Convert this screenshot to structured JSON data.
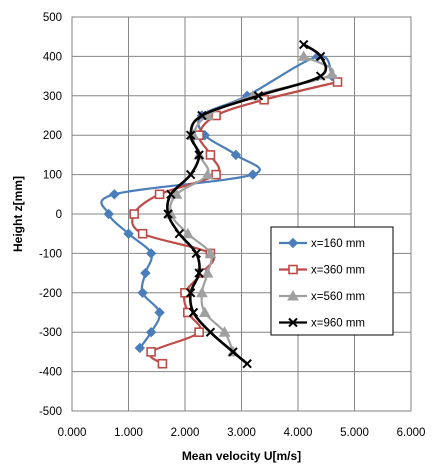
{
  "chart_data": {
    "type": "scatter",
    "xlabel": "Mean velocity U[m/s]",
    "ylabel": "Height  z[mm]",
    "xlim": [
      0,
      6
    ],
    "ylim": [
      -500,
      500
    ],
    "x_ticks": [
      "0.000",
      "1.000",
      "2.000",
      "3.000",
      "4.000",
      "5.000",
      "6.000"
    ],
    "y_ticks": [
      "-500",
      "-400",
      "-300",
      "-200",
      "-100",
      "0",
      "100",
      "200",
      "300",
      "400",
      "500"
    ],
    "grid": true,
    "legend_position": "right",
    "series": [
      {
        "name": "x=160 mm",
        "color": "#4a7ebb",
        "marker": "diamond",
        "points": [
          [
            4.6,
            350
          ],
          [
            4.35,
            400
          ],
          [
            3.1,
            300
          ],
          [
            2.3,
            250
          ],
          [
            2.35,
            200
          ],
          [
            2.9,
            150
          ],
          [
            3.2,
            100
          ],
          [
            0.75,
            50
          ],
          [
            0.65,
            0
          ],
          [
            1.0,
            -50
          ],
          [
            1.4,
            -100
          ],
          [
            1.3,
            -150
          ],
          [
            1.25,
            -200
          ],
          [
            1.55,
            -250
          ],
          [
            1.4,
            -300
          ],
          [
            1.2,
            -340
          ]
        ]
      },
      {
        "name": "x=360 mm",
        "color": "#be4b48",
        "marker": "square",
        "points": [
          [
            4.7,
            335
          ],
          [
            3.4,
            290
          ],
          [
            2.55,
            250
          ],
          [
            2.25,
            200
          ],
          [
            2.45,
            150
          ],
          [
            2.55,
            100
          ],
          [
            1.55,
            50
          ],
          [
            1.1,
            0
          ],
          [
            1.25,
            -50
          ],
          [
            2.45,
            -100
          ],
          [
            2.3,
            -150
          ],
          [
            2.0,
            -200
          ],
          [
            2.05,
            -250
          ],
          [
            2.25,
            -300
          ],
          [
            1.4,
            -350
          ],
          [
            1.6,
            -380
          ]
        ]
      },
      {
        "name": "x=560 mm",
        "color": "#a0a0a0",
        "marker": "triangle",
        "points": [
          [
            4.1,
            400
          ],
          [
            4.6,
            355
          ],
          [
            3.2,
            300
          ],
          [
            2.4,
            250
          ],
          [
            2.15,
            200
          ],
          [
            2.25,
            150
          ],
          [
            2.4,
            100
          ],
          [
            1.85,
            50
          ],
          [
            1.75,
            0
          ],
          [
            2.05,
            -50
          ],
          [
            2.45,
            -100
          ],
          [
            2.4,
            -150
          ],
          [
            2.3,
            -200
          ],
          [
            2.35,
            -250
          ],
          [
            2.7,
            -300
          ],
          [
            2.85,
            -350
          ]
        ]
      },
      {
        "name": "x=960 mm",
        "color": "#000000",
        "marker": "cross",
        "points": [
          [
            4.1,
            430
          ],
          [
            4.4,
            400
          ],
          [
            4.4,
            350
          ],
          [
            3.3,
            300
          ],
          [
            2.3,
            250
          ],
          [
            2.1,
            200
          ],
          [
            2.25,
            150
          ],
          [
            2.1,
            100
          ],
          [
            1.75,
            50
          ],
          [
            1.7,
            0
          ],
          [
            1.9,
            -50
          ],
          [
            2.2,
            -100
          ],
          [
            2.25,
            -150
          ],
          [
            2.1,
            -200
          ],
          [
            2.15,
            -250
          ],
          [
            2.45,
            -300
          ],
          [
            2.85,
            -350
          ],
          [
            3.1,
            -380
          ]
        ]
      }
    ]
  }
}
